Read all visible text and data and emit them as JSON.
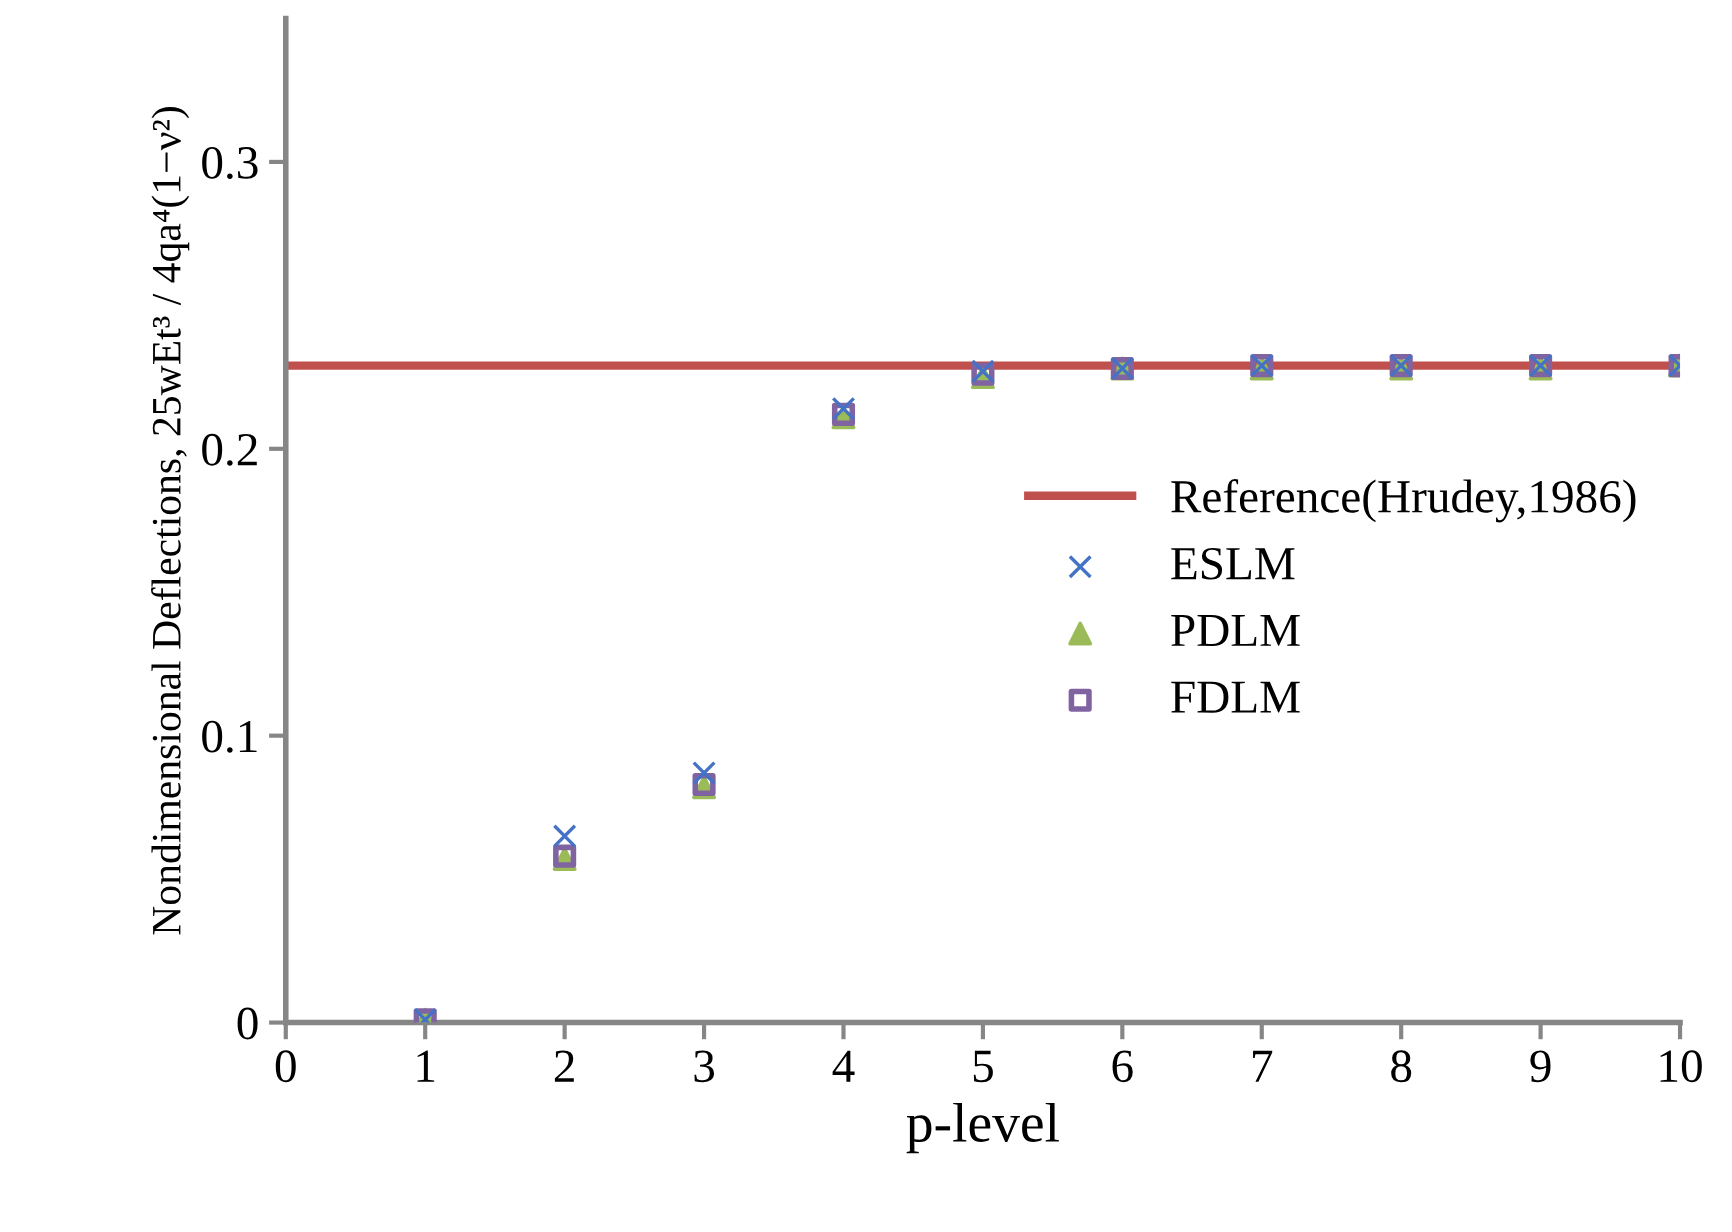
{
  "chart_data": {
    "type": "scatter",
    "xlabel": "p-level",
    "ylabel": "Nondimensional Deflections, 25wEt³ / 4qa⁴(1−ν²)",
    "x": [
      1,
      2,
      3,
      4,
      5,
      6,
      7,
      8,
      9,
      10
    ],
    "series": [
      {
        "name": "ESLM",
        "color": "#4472c4",
        "marker": "cross",
        "values": [
          0.001,
          0.065,
          0.087,
          0.214,
          0.227,
          0.228,
          0.229,
          0.229,
          0.229,
          0.229
        ]
      },
      {
        "name": "PDLM",
        "color": "#9bbb59",
        "marker": "triangle",
        "values": [
          0.001,
          0.057,
          0.082,
          0.211,
          0.225,
          0.228,
          0.228,
          0.228,
          0.228,
          0.229
        ]
      },
      {
        "name": "FDLM",
        "color": "#8064a2",
        "marker": "square",
        "values": [
          0.001,
          0.058,
          0.083,
          0.212,
          0.226,
          0.228,
          0.229,
          0.229,
          0.229,
          0.229
        ]
      }
    ],
    "ref_lines": [
      {
        "axis": "y",
        "value": 0.229,
        "label": "Reference(Hrudey,1986)",
        "color": "#c0504d"
      }
    ],
    "xlim": [
      0,
      10
    ],
    "xticks": [
      0,
      1,
      2,
      3,
      4,
      5,
      6,
      7,
      8,
      9,
      10
    ],
    "ylim": [
      0,
      0.35
    ],
    "yticks": [
      0,
      0.1,
      0.2,
      0.3
    ],
    "grid": false,
    "legend": "right"
  }
}
